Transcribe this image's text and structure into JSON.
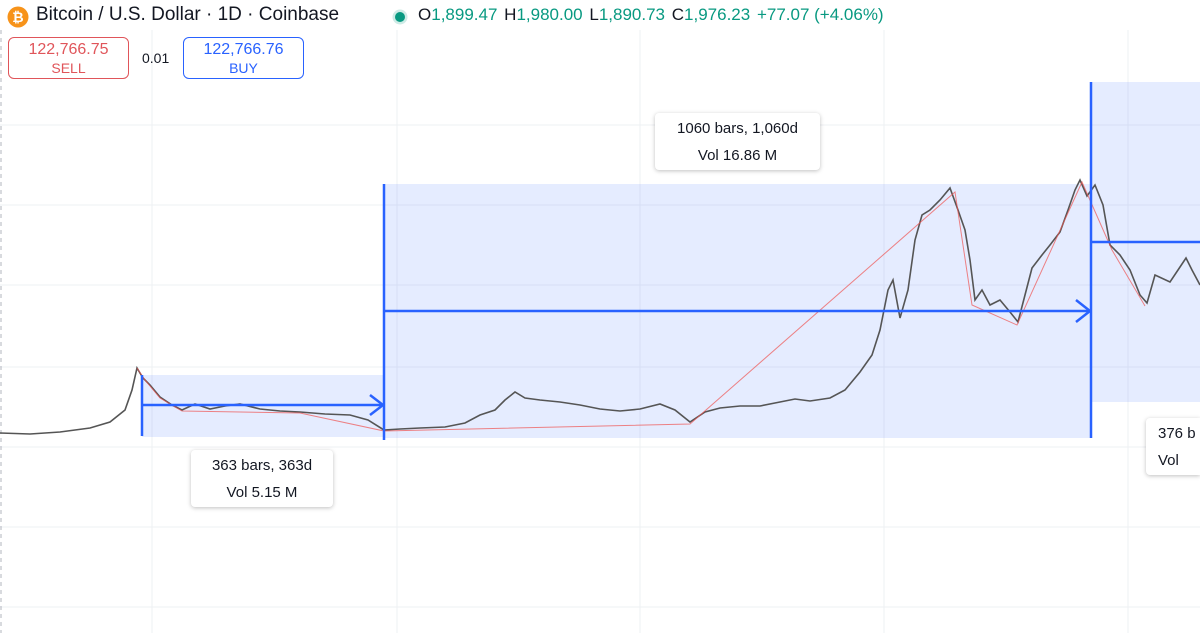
{
  "header": {
    "symbol": "Bitcoin / U.S. Dollar · 1D · Coinbase",
    "ohlc": [
      {
        "label": "O",
        "value": "1,899.47"
      },
      {
        "label": "H",
        "value": "1,980.00"
      },
      {
        "label": "L",
        "value": "1,890.73"
      },
      {
        "label": "C",
        "value": "1,976.23"
      }
    ],
    "change": "+77.07 (+4.06%)"
  },
  "trade": {
    "sell_price": "122,766.75",
    "sell_label": "SELL",
    "spread": "0.01",
    "buy_price": "122,766.76",
    "buy_label": "BUY"
  },
  "measurements": [
    {
      "bars": "363 bars, 363d",
      "volume": "Vol 5.15 M"
    },
    {
      "bars": "1060 bars, 1,060d",
      "volume": "Vol 16.86 M"
    },
    {
      "bars": "376 b",
      "volume": "Vol"
    }
  ]
}
